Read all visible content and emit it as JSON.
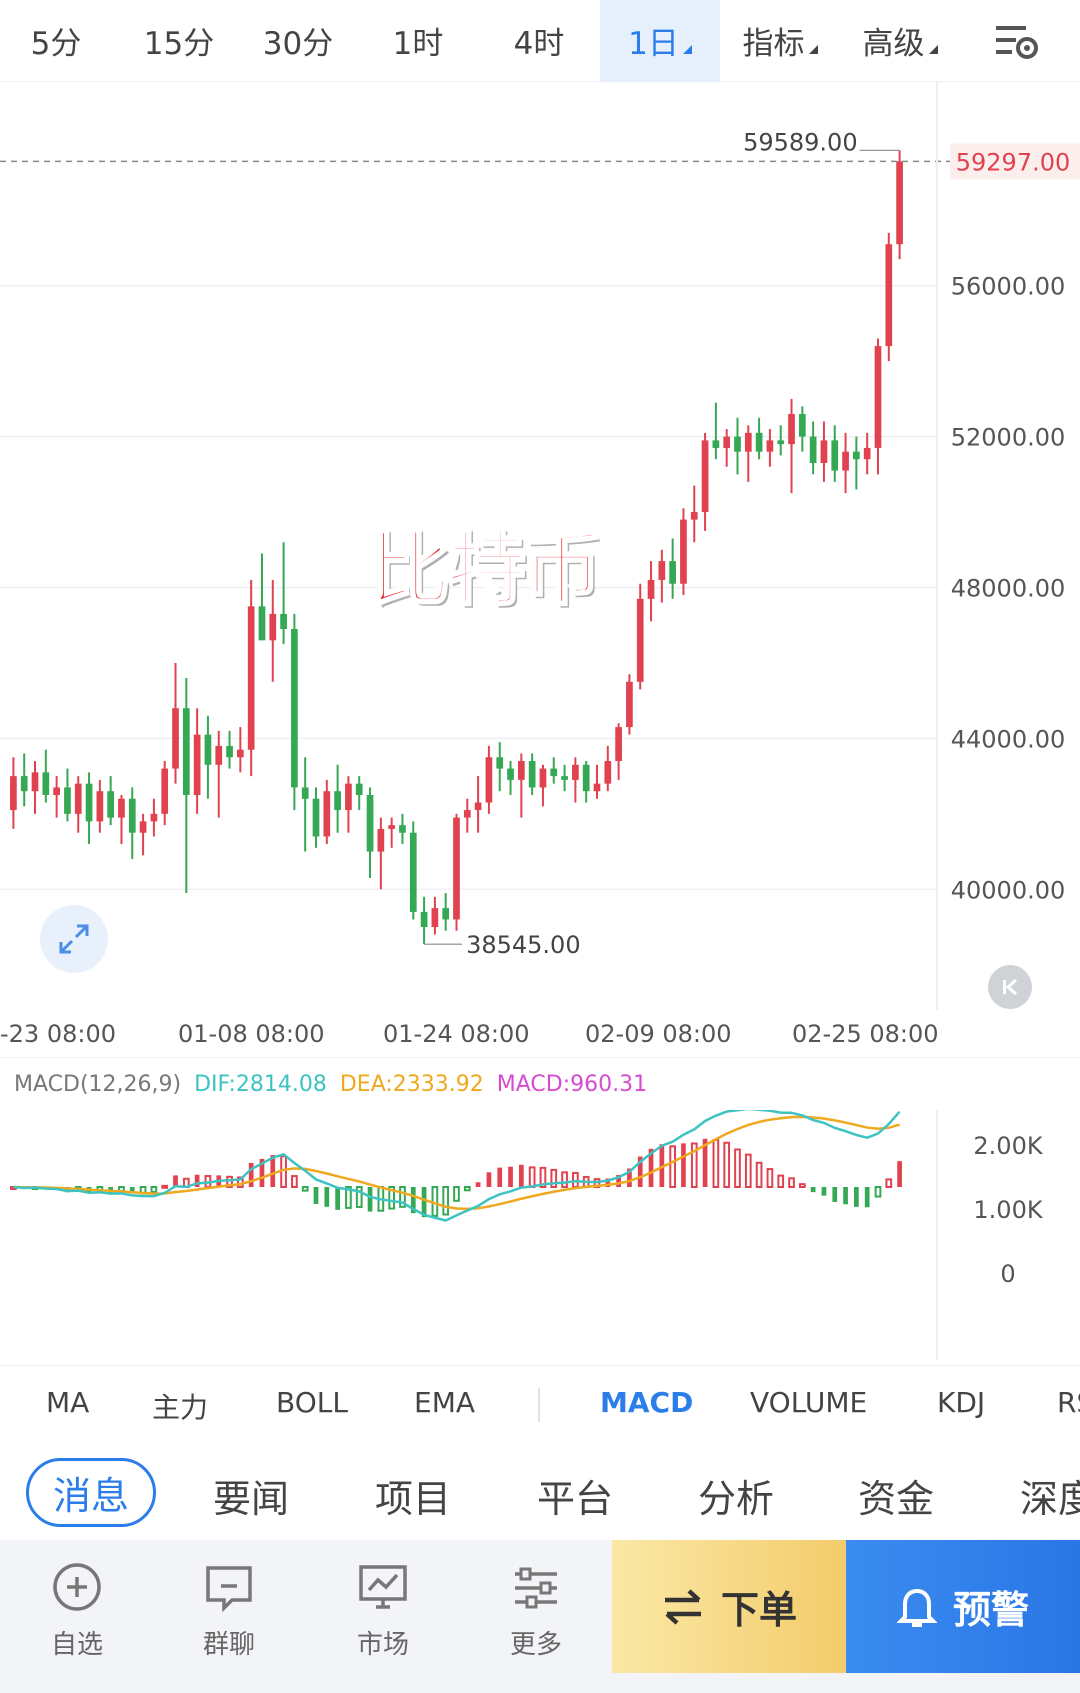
{
  "intervals": [
    {
      "label": "5分"
    },
    {
      "label": "15分"
    },
    {
      "label": "30分"
    },
    {
      "label": "1时"
    },
    {
      "label": "4时"
    },
    {
      "label": "1日"
    },
    {
      "label": "指标"
    },
    {
      "label": "高级"
    }
  ],
  "active_interval": "1日",
  "watermark": "比特币",
  "price_axis": {
    "current_price": "59297.00",
    "ticks": [
      "56000.00",
      "52000.00",
      "48000.00",
      "44000.00",
      "40000.00"
    ],
    "high_label": "59589.00",
    "low_label": "38545.00"
  },
  "time_axis": [
    "-23 08:00",
    "01-08 08:00",
    "01-24 08:00",
    "02-09 08:00",
    "02-25 08:00"
  ],
  "macd": {
    "params": "MACD(12,26,9)",
    "dif": "DIF:2814.08",
    "dea": "DEA:2333.92",
    "macd": "MACD:960.31",
    "axis": [
      "2.00K",
      "1.00K",
      "0"
    ]
  },
  "indicator_tabs": [
    "MA",
    "主力",
    "BOLL",
    "EMA",
    "MACD",
    "VOLUME",
    "KDJ",
    "RSI"
  ],
  "active_indicator": "MACD",
  "news_tabs": [
    "消息",
    "要闻",
    "项目",
    "平台",
    "分析",
    "资金",
    "深度"
  ],
  "active_news": "消息",
  "bottom_nav": [
    {
      "label": "自选",
      "icon": "add-circle-icon"
    },
    {
      "label": "群聊",
      "icon": "chat-icon"
    },
    {
      "label": "市场",
      "icon": "market-chart-icon"
    },
    {
      "label": "更多",
      "icon": "more-sliders-icon"
    }
  ],
  "order_button": "下单",
  "alert_button": "预警",
  "colors": {
    "up": "#e0424f",
    "down": "#34a853",
    "accent": "#2b7de9",
    "dif": "#3ec3c3",
    "dea": "#f0a81e",
    "macd_label": "#d64bd1"
  },
  "chart_data": {
    "type": "candlestick",
    "ylim": [
      36800,
      61400
    ],
    "candles": [
      {
        "o": 42100,
        "h": 43500,
        "l": 41600,
        "c": 43000
      },
      {
        "o": 43000,
        "h": 43600,
        "l": 42200,
        "c": 42600
      },
      {
        "o": 42600,
        "h": 43400,
        "l": 42000,
        "c": 43100
      },
      {
        "o": 43100,
        "h": 43700,
        "l": 42300,
        "c": 42500
      },
      {
        "o": 42500,
        "h": 43000,
        "l": 41900,
        "c": 42700
      },
      {
        "o": 42700,
        "h": 43200,
        "l": 41800,
        "c": 42000
      },
      {
        "o": 42000,
        "h": 43000,
        "l": 41500,
        "c": 42800
      },
      {
        "o": 42800,
        "h": 43100,
        "l": 41200,
        "c": 41800
      },
      {
        "o": 41800,
        "h": 42900,
        "l": 41500,
        "c": 42600
      },
      {
        "o": 42600,
        "h": 43000,
        "l": 41700,
        "c": 41900
      },
      {
        "o": 41900,
        "h": 42500,
        "l": 41200,
        "c": 42400
      },
      {
        "o": 42400,
        "h": 42700,
        "l": 40800,
        "c": 41500
      },
      {
        "o": 41500,
        "h": 42000,
        "l": 40900,
        "c": 41800
      },
      {
        "o": 41800,
        "h": 42400,
        "l": 41400,
        "c": 42000
      },
      {
        "o": 42000,
        "h": 43400,
        "l": 41700,
        "c": 43200
      },
      {
        "o": 43200,
        "h": 46000,
        "l": 42800,
        "c": 44800
      },
      {
        "o": 44800,
        "h": 45600,
        "l": 39900,
        "c": 42500
      },
      {
        "o": 42500,
        "h": 44800,
        "l": 42000,
        "c": 44100
      },
      {
        "o": 44100,
        "h": 44600,
        "l": 42400,
        "c": 43300
      },
      {
        "o": 43300,
        "h": 44200,
        "l": 41900,
        "c": 43800
      },
      {
        "o": 43800,
        "h": 44200,
        "l": 43200,
        "c": 43500
      },
      {
        "o": 43500,
        "h": 44300,
        "l": 43100,
        "c": 43700
      },
      {
        "o": 43700,
        "h": 48200,
        "l": 43000,
        "c": 47500
      },
      {
        "o": 47500,
        "h": 48900,
        "l": 46600,
        "c": 46600
      },
      {
        "o": 46600,
        "h": 48200,
        "l": 45500,
        "c": 47300
      },
      {
        "o": 47300,
        "h": 49200,
        "l": 46500,
        "c": 46900
      },
      {
        "o": 46900,
        "h": 47300,
        "l": 42100,
        "c": 42700
      },
      {
        "o": 42700,
        "h": 43500,
        "l": 41000,
        "c": 42400
      },
      {
        "o": 42400,
        "h": 42700,
        "l": 41100,
        "c": 41400
      },
      {
        "o": 41400,
        "h": 42900,
        "l": 41200,
        "c": 42600
      },
      {
        "o": 42600,
        "h": 43300,
        "l": 41500,
        "c": 42100
      },
      {
        "o": 42100,
        "h": 43000,
        "l": 41500,
        "c": 42800
      },
      {
        "o": 42800,
        "h": 43000,
        "l": 42100,
        "c": 42500
      },
      {
        "o": 42500,
        "h": 42700,
        "l": 40300,
        "c": 41000
      },
      {
        "o": 41000,
        "h": 41900,
        "l": 40000,
        "c": 41600
      },
      {
        "o": 41600,
        "h": 41900,
        "l": 41100,
        "c": 41700
      },
      {
        "o": 41700,
        "h": 42000,
        "l": 41200,
        "c": 41500
      },
      {
        "o": 41500,
        "h": 41800,
        "l": 39200,
        "c": 39400
      },
      {
        "o": 39400,
        "h": 39800,
        "l": 38545,
        "c": 39000
      },
      {
        "o": 39000,
        "h": 39800,
        "l": 38800,
        "c": 39500
      },
      {
        "o": 39500,
        "h": 39900,
        "l": 38900,
        "c": 39200
      },
      {
        "o": 39200,
        "h": 42000,
        "l": 38900,
        "c": 41900
      },
      {
        "o": 41900,
        "h": 42400,
        "l": 41500,
        "c": 42100
      },
      {
        "o": 42100,
        "h": 43000,
        "l": 41500,
        "c": 42300
      },
      {
        "o": 42300,
        "h": 43800,
        "l": 42000,
        "c": 43500
      },
      {
        "o": 43500,
        "h": 43900,
        "l": 42600,
        "c": 43200
      },
      {
        "o": 43200,
        "h": 43400,
        "l": 42500,
        "c": 42900
      },
      {
        "o": 42900,
        "h": 43600,
        "l": 41900,
        "c": 43400
      },
      {
        "o": 43400,
        "h": 43600,
        "l": 42500,
        "c": 42700
      },
      {
        "o": 42700,
        "h": 43300,
        "l": 42200,
        "c": 43200
      },
      {
        "o": 43200,
        "h": 43500,
        "l": 42800,
        "c": 43000
      },
      {
        "o": 43000,
        "h": 43300,
        "l": 42600,
        "c": 42900
      },
      {
        "o": 42900,
        "h": 43500,
        "l": 42300,
        "c": 43300
      },
      {
        "o": 43300,
        "h": 43400,
        "l": 42300,
        "c": 42600
      },
      {
        "o": 42600,
        "h": 43300,
        "l": 42400,
        "c": 42800
      },
      {
        "o": 42800,
        "h": 43800,
        "l": 42600,
        "c": 43400
      },
      {
        "o": 43400,
        "h": 44400,
        "l": 42900,
        "c": 44300
      },
      {
        "o": 44300,
        "h": 45700,
        "l": 44100,
        "c": 45500
      },
      {
        "o": 45500,
        "h": 48100,
        "l": 45300,
        "c": 47700
      },
      {
        "o": 47700,
        "h": 48700,
        "l": 47100,
        "c": 48200
      },
      {
        "o": 48200,
        "h": 49000,
        "l": 47600,
        "c": 48700
      },
      {
        "o": 48700,
        "h": 49300,
        "l": 47700,
        "c": 48100
      },
      {
        "o": 48100,
        "h": 50100,
        "l": 47800,
        "c": 49800
      },
      {
        "o": 49800,
        "h": 50700,
        "l": 49200,
        "c": 50000
      },
      {
        "o": 50000,
        "h": 52100,
        "l": 49500,
        "c": 51900
      },
      {
        "o": 51900,
        "h": 52900,
        "l": 51400,
        "c": 51700
      },
      {
        "o": 51700,
        "h": 52200,
        "l": 51200,
        "c": 52000
      },
      {
        "o": 52000,
        "h": 52500,
        "l": 51000,
        "c": 51600
      },
      {
        "o": 51600,
        "h": 52300,
        "l": 50800,
        "c": 52100
      },
      {
        "o": 52100,
        "h": 52500,
        "l": 51400,
        "c": 51600
      },
      {
        "o": 51600,
        "h": 52200,
        "l": 51200,
        "c": 51900
      },
      {
        "o": 51900,
        "h": 52300,
        "l": 51500,
        "c": 51800
      },
      {
        "o": 51800,
        "h": 53000,
        "l": 50500,
        "c": 52600
      },
      {
        "o": 52600,
        "h": 52800,
        "l": 51600,
        "c": 52000
      },
      {
        "o": 52000,
        "h": 52400,
        "l": 51000,
        "c": 51300
      },
      {
        "o": 51300,
        "h": 52400,
        "l": 50800,
        "c": 51900
      },
      {
        "o": 51900,
        "h": 52300,
        "l": 50800,
        "c": 51100
      },
      {
        "o": 51100,
        "h": 52100,
        "l": 50500,
        "c": 51600
      },
      {
        "o": 51600,
        "h": 52000,
        "l": 50600,
        "c": 51400
      },
      {
        "o": 51400,
        "h": 52100,
        "l": 51000,
        "c": 51700
      },
      {
        "o": 51700,
        "h": 54600,
        "l": 51000,
        "c": 54400
      },
      {
        "o": 54400,
        "h": 57400,
        "l": 54000,
        "c": 57100
      },
      {
        "o": 57100,
        "h": 59589,
        "l": 56700,
        "c": 59297
      }
    ]
  }
}
